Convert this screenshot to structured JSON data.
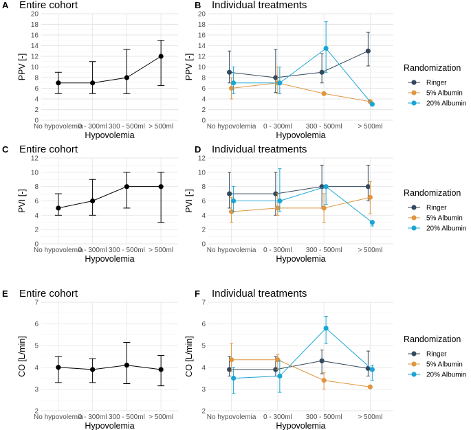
{
  "colors": {
    "ringer": "#34495e",
    "albumin5": "#e0953f",
    "albumin20": "#1aa6d4",
    "cohort": "#000000",
    "grid": "#e6e6e6",
    "axis_text": "#4d4d4d"
  },
  "legend": {
    "title": "Randomization",
    "items": [
      {
        "label": "Ringer",
        "color": "#34495e"
      },
      {
        "label": "5% Albumin",
        "color": "#e0953f"
      },
      {
        "label": "20% Albumin",
        "color": "#1aa6d4"
      }
    ]
  },
  "chart_data": [
    {
      "panel": "A",
      "type": "line",
      "title": "Entire cohort",
      "xlabel": "Hypovolemia",
      "ylabel": "PPV [-]",
      "categories": [
        "No hypovolemia",
        "0 - 300ml",
        "300 - 500ml",
        "> 500ml"
      ],
      "ylim": [
        0,
        20
      ],
      "yticks": [
        0,
        2,
        4,
        6,
        8,
        10,
        12,
        14,
        16,
        18,
        20
      ],
      "series": [
        {
          "name": "Entire cohort",
          "color": "#000000",
          "values": [
            7,
            7,
            8,
            12
          ],
          "lower": [
            5,
            5,
            5,
            6.5
          ],
          "upper": [
            9,
            11,
            13.3,
            15
          ]
        }
      ]
    },
    {
      "panel": "B",
      "type": "line",
      "title": "Individual treatments",
      "xlabel": "Hypovolemia",
      "ylabel": "PPV [-]",
      "categories": [
        "No hypovolemia",
        "0 - 300ml",
        "300 - 500ml",
        "> 500ml"
      ],
      "ylim": [
        0,
        20
      ],
      "yticks": [
        0,
        2,
        4,
        6,
        8,
        10,
        12,
        14,
        16,
        18,
        20
      ],
      "series": [
        {
          "name": "Ringer",
          "color": "#34495e",
          "values": [
            9,
            8,
            9,
            13
          ],
          "lower": [
            7,
            5.2,
            7,
            10.2
          ],
          "upper": [
            13,
            13.3,
            12.5,
            16.5
          ]
        },
        {
          "name": "5% Albumin",
          "color": "#e0953f",
          "values": [
            6,
            7,
            5,
            3.5
          ],
          "lower": [
            4,
            5,
            5,
            3.5
          ],
          "upper": [
            8,
            10,
            5,
            3.5
          ]
        },
        {
          "name": "20% Albumin",
          "color": "#1aa6d4",
          "values": [
            7,
            7,
            13.5,
            3
          ],
          "lower": [
            5,
            5,
            9,
            2.7
          ],
          "upper": [
            10,
            10,
            18.5,
            3.2
          ]
        }
      ]
    },
    {
      "panel": "C",
      "type": "line",
      "title": "Entire cohort",
      "xlabel": "Hypovolemia",
      "ylabel": "PVI [-]",
      "categories": [
        "No hypovolemia",
        "0 - 300ml",
        "300 - 500ml",
        "> 500ml"
      ],
      "ylim": [
        0,
        12
      ],
      "yticks": [
        0,
        2,
        4,
        6,
        8,
        10,
        12
      ],
      "series": [
        {
          "name": "Entire cohort",
          "color": "#000000",
          "values": [
            5,
            6,
            8,
            8
          ],
          "lower": [
            4,
            4,
            5,
            3
          ],
          "upper": [
            7,
            9,
            10,
            10
          ]
        }
      ]
    },
    {
      "panel": "D",
      "type": "line",
      "title": "Individual treatments",
      "xlabel": "Hypovolemia",
      "ylabel": "PVI [-]",
      "categories": [
        "No hypovolemia",
        "0 - 300ml",
        "300 - 500ml",
        "> 500ml"
      ],
      "ylim": [
        0,
        12
      ],
      "yticks": [
        0,
        2,
        4,
        6,
        8,
        10,
        12
      ],
      "series": [
        {
          "name": "Ringer",
          "color": "#34495e",
          "values": [
            7,
            7,
            8,
            8
          ],
          "lower": [
            5,
            4,
            5,
            6
          ],
          "upper": [
            10,
            10,
            11,
            11
          ]
        },
        {
          "name": "5% Albumin",
          "color": "#e0953f",
          "values": [
            4.5,
            5,
            5,
            6.5
          ],
          "lower": [
            3,
            4,
            3,
            4.2
          ],
          "upper": [
            6.5,
            7,
            7,
            8.7
          ]
        },
        {
          "name": "20% Albumin",
          "color": "#1aa6d4",
          "values": [
            6,
            6,
            8,
            3
          ],
          "lower": [
            4.5,
            4.5,
            5.5,
            2.5
          ],
          "upper": [
            8,
            10.5,
            8,
            3
          ]
        }
      ]
    },
    {
      "panel": "E",
      "type": "line",
      "title": "Entire cohort",
      "xlabel": "Hypovolemia",
      "ylabel": "CO [L/min]",
      "categories": [
        "No hypovolemia",
        "0 - 300ml",
        "300 - 500ml",
        "> 500ml"
      ],
      "ylim": [
        2,
        7
      ],
      "yticks": [
        2,
        3,
        4,
        5,
        6,
        7
      ],
      "series": [
        {
          "name": "Entire cohort",
          "color": "#000000",
          "values": [
            4.0,
            3.9,
            4.1,
            3.9
          ],
          "lower": [
            3.3,
            3.3,
            3.25,
            3.15
          ],
          "upper": [
            4.5,
            4.4,
            5.15,
            4.55
          ]
        }
      ]
    },
    {
      "panel": "F",
      "type": "line",
      "title": "Individual treatments",
      "xlabel": "Hypovolemia",
      "ylabel": "CO [L/min]",
      "categories": [
        "No hypovolemia",
        "0 - 300ml",
        "300 - 500ml",
        "> 500ml"
      ],
      "ylim": [
        2,
        7
      ],
      "yticks": [
        2,
        3,
        4,
        5,
        6,
        7
      ],
      "series": [
        {
          "name": "Ringer",
          "color": "#34495e",
          "values": [
            3.9,
            3.9,
            4.3,
            3.95
          ],
          "lower": [
            3.6,
            3.6,
            3.7,
            3.6
          ],
          "upper": [
            4.5,
            4.5,
            4.8,
            4.75
          ]
        },
        {
          "name": "5% Albumin",
          "color": "#e0953f",
          "values": [
            4.35,
            4.35,
            3.4,
            3.1
          ],
          "lower": [
            3.8,
            3.9,
            3.0,
            3.1
          ],
          "upper": [
            5.1,
            4.6,
            3.75,
            3.1
          ]
        },
        {
          "name": "20% Albumin",
          "color": "#1aa6d4",
          "values": [
            3.5,
            3.6,
            5.8,
            3.9
          ],
          "lower": [
            2.8,
            2.85,
            5.1,
            3.4
          ],
          "upper": [
            4.0,
            4.3,
            6.35,
            4.1
          ]
        }
      ]
    }
  ]
}
